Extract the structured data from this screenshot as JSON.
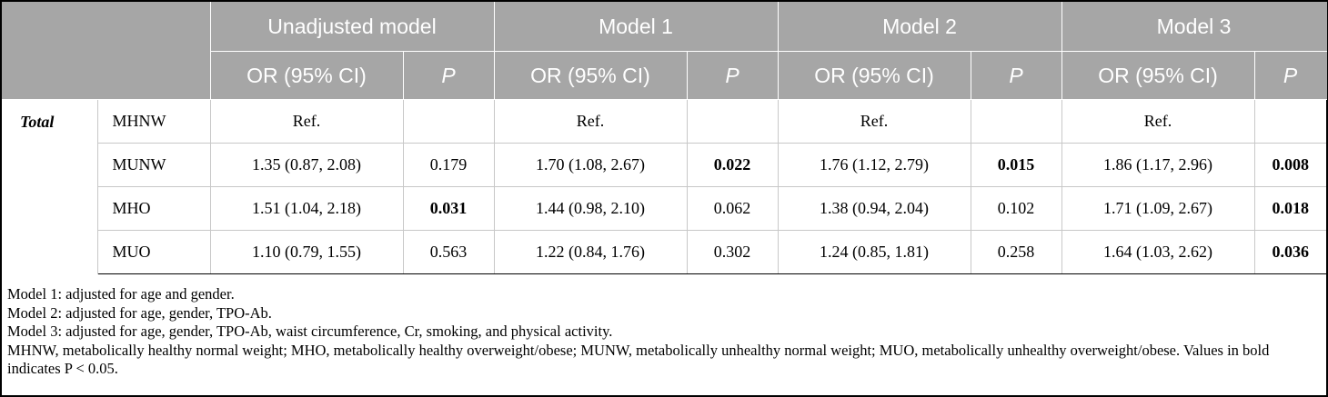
{
  "header": {
    "groups": [
      "Unadjusted model",
      "Model 1",
      "Model 2",
      "Model 3"
    ],
    "or_label": "OR (95% CI)",
    "p_label": "P"
  },
  "table": {
    "group_label": "Total",
    "rows": [
      {
        "label": "MHNW",
        "cells": [
          {
            "v": "Ref.",
            "b": false
          },
          {
            "v": "",
            "b": false
          },
          {
            "v": "Ref.",
            "b": false
          },
          {
            "v": "",
            "b": false
          },
          {
            "v": "Ref.",
            "b": false
          },
          {
            "v": "",
            "b": false
          },
          {
            "v": "Ref.",
            "b": false
          },
          {
            "v": "",
            "b": false
          }
        ]
      },
      {
        "label": "MUNW",
        "cells": [
          {
            "v": "1.35 (0.87, 2.08)",
            "b": false
          },
          {
            "v": "0.179",
            "b": false
          },
          {
            "v": "1.70 (1.08, 2.67)",
            "b": false
          },
          {
            "v": "0.022",
            "b": true
          },
          {
            "v": "1.76 (1.12, 2.79)",
            "b": false
          },
          {
            "v": "0.015",
            "b": true
          },
          {
            "v": "1.86 (1.17, 2.96)",
            "b": false
          },
          {
            "v": "0.008",
            "b": true
          }
        ]
      },
      {
        "label": "MHO",
        "cells": [
          {
            "v": "1.51 (1.04, 2.18)",
            "b": false
          },
          {
            "v": "0.031",
            "b": true
          },
          {
            "v": "1.44 (0.98, 2.10)",
            "b": false
          },
          {
            "v": "0.062",
            "b": false
          },
          {
            "v": "1.38 (0.94, 2.04)",
            "b": false
          },
          {
            "v": "0.102",
            "b": false
          },
          {
            "v": "1.71 (1.09, 2.67)",
            "b": false
          },
          {
            "v": "0.018",
            "b": true
          }
        ]
      },
      {
        "label": "MUO",
        "cells": [
          {
            "v": "1.10 (0.79, 1.55)",
            "b": false
          },
          {
            "v": "0.563",
            "b": false
          },
          {
            "v": "1.22 (0.84, 1.76)",
            "b": false
          },
          {
            "v": "0.302",
            "b": false
          },
          {
            "v": "1.24 (0.85, 1.81)",
            "b": false
          },
          {
            "v": "0.258",
            "b": false
          },
          {
            "v": "1.64 (1.03, 2.62)",
            "b": false
          },
          {
            "v": "0.036",
            "b": true
          }
        ]
      }
    ]
  },
  "notes": [
    "Model 1: adjusted for age and gender.",
    "Model 2: adjusted for age, gender, TPO-Ab.",
    "Model 3: adjusted for age, gender, TPO-Ab, waist circumference, Cr, smoking, and physical activity.",
    "MHNW, metabolically healthy normal weight; MHO, metabolically healthy overweight/obese; MUNW, metabolically unhealthy normal weight; MUO, metabolically unhealthy overweight/obese. Values in bold indicates P < 0.05."
  ],
  "colors": {
    "header_bg": "#a6a6a6",
    "header_text": "#ffffff",
    "border": "#000000"
  }
}
